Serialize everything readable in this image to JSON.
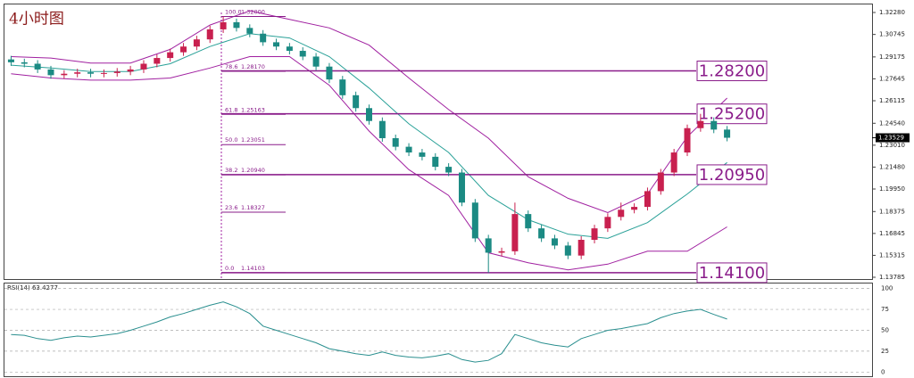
{
  "chart_data": [
    {
      "type": "candlestick",
      "title": "4小时图",
      "ylim": [
        1.1366,
        1.3284
      ],
      "yticks": [
        {
          "value": 1.3228,
          "label": "1.32280"
        },
        {
          "value": 1.30745,
          "label": "1.30745"
        },
        {
          "value": 1.29175,
          "label": "1.29175"
        },
        {
          "value": 1.27645,
          "label": "1.27645"
        },
        {
          "value": 1.26115,
          "label": "1.26115"
        },
        {
          "value": 1.2454,
          "label": "1.24540"
        },
        {
          "value": 1.2301,
          "label": "1.23010"
        },
        {
          "value": 1.2148,
          "label": "1.21480"
        },
        {
          "value": 1.1995,
          "label": "1.19950"
        },
        {
          "value": 1.18375,
          "label": "1.18375"
        },
        {
          "value": 1.16845,
          "label": "1.16845"
        },
        {
          "value": 1.15315,
          "label": "1.15315"
        },
        {
          "value": 1.13785,
          "label": "1.13785"
        }
      ],
      "current_price": 1.23529,
      "up_color": "#c8204f",
      "down_color": "#1b8a83",
      "open": [
        1.29,
        1.288,
        1.287,
        1.283,
        1.279,
        1.28,
        1.281,
        1.28,
        1.2805,
        1.2815,
        1.283,
        1.287,
        1.291,
        1.295,
        1.299,
        1.304,
        1.311,
        1.316,
        1.312,
        1.308,
        1.302,
        1.299,
        1.296,
        1.292,
        1.285,
        1.276,
        1.265,
        1.256,
        1.247,
        1.235,
        1.229,
        1.225,
        1.222,
        1.215,
        1.211,
        1.19,
        1.165,
        1.155,
        1.156,
        1.182,
        1.172,
        1.165,
        1.16,
        1.153,
        1.164,
        1.172,
        1.18,
        1.185,
        1.187,
        1.198,
        1.211,
        1.225,
        1.242,
        1.247,
        1.241
      ],
      "high": [
        1.2925,
        1.2905,
        1.2895,
        1.2855,
        1.2825,
        1.2835,
        1.2835,
        1.283,
        1.284,
        1.2855,
        1.2895,
        1.2935,
        1.2975,
        1.3015,
        1.3065,
        1.3135,
        1.32,
        1.3185,
        1.3145,
        1.3105,
        1.3045,
        1.3015,
        1.2985,
        1.2945,
        1.2875,
        1.2785,
        1.2675,
        1.2585,
        1.2495,
        1.2375,
        1.2315,
        1.2275,
        1.2245,
        1.2175,
        1.2135,
        1.1925,
        1.1675,
        1.1585,
        1.19,
        1.1845,
        1.1745,
        1.1675,
        1.1625,
        1.1665,
        1.1745,
        1.1825,
        1.19,
        1.1895,
        1.2005,
        1.2135,
        1.2275,
        1.2445,
        1.252,
        1.2495,
        1.2435
      ],
      "low": [
        1.2855,
        1.2845,
        1.2805,
        1.2765,
        1.2765,
        1.2775,
        1.2775,
        1.2775,
        1.278,
        1.279,
        1.2805,
        1.2845,
        1.2885,
        1.2925,
        1.2965,
        1.3015,
        1.3085,
        1.3095,
        1.3055,
        1.2995,
        1.2965,
        1.2935,
        1.2895,
        1.2825,
        1.2735,
        1.2625,
        1.2535,
        1.2445,
        1.2325,
        1.2265,
        1.2225,
        1.2195,
        1.2125,
        1.2085,
        1.1875,
        1.1625,
        1.141,
        1.1525,
        1.1535,
        1.1695,
        1.1625,
        1.1575,
        1.1505,
        1.1505,
        1.1615,
        1.1695,
        1.1775,
        1.1825,
        1.1845,
        1.1955,
        1.2085,
        1.2225,
        1.2395,
        1.2385,
        1.2328
      ],
      "close": [
        1.288,
        1.287,
        1.283,
        1.279,
        1.28,
        1.281,
        1.28,
        1.2805,
        1.2815,
        1.283,
        1.287,
        1.291,
        1.295,
        1.299,
        1.304,
        1.311,
        1.316,
        1.312,
        1.308,
        1.302,
        1.299,
        1.296,
        1.292,
        1.285,
        1.276,
        1.265,
        1.256,
        1.247,
        1.235,
        1.229,
        1.225,
        1.222,
        1.215,
        1.211,
        1.19,
        1.165,
        1.155,
        1.156,
        1.182,
        1.172,
        1.165,
        1.16,
        1.153,
        1.164,
        1.172,
        1.18,
        1.185,
        1.187,
        1.198,
        1.211,
        1.225,
        1.242,
        1.247,
        1.241,
        1.23529
      ],
      "bands": {
        "x": [
          0,
          3,
          6,
          9,
          12,
          15,
          18,
          21,
          24,
          27,
          30,
          33,
          36,
          39,
          42,
          45,
          48,
          51,
          54
        ],
        "series": [
          {
            "color": "#a020a0",
            "values": [
              1.292,
              1.291,
              1.2875,
              1.2875,
              1.297,
              1.314,
              1.324,
              1.318,
              1.312,
              1.3,
              1.277,
              1.255,
              1.235,
              1.208,
              1.193,
              1.183,
              1.196,
              1.236,
              1.263
            ]
          },
          {
            "color": "#2aa198",
            "values": [
              1.286,
              1.284,
              1.2815,
              1.2815,
              1.287,
              1.299,
              1.308,
              1.305,
              1.292,
              1.27,
              1.245,
              1.225,
              1.195,
              1.178,
              1.168,
              1.165,
              1.176,
              1.196,
              1.218
            ]
          },
          {
            "color": "#a020a0",
            "values": [
              1.28,
              1.277,
              1.2755,
              1.2755,
              1.277,
              1.284,
              1.292,
              1.292,
              1.272,
              1.24,
              1.213,
              1.195,
              1.155,
              1.148,
              1.143,
              1.147,
              1.156,
              1.156,
              1.173
            ]
          }
        ]
      },
      "fib_levels": [
        {
          "ratio": "100.0",
          "value": 1.32,
          "label": "1.32000"
        },
        {
          "ratio": "78.6",
          "value": 1.2817,
          "label": "1.28170"
        },
        {
          "ratio": "61.8",
          "value": 1.25163,
          "label": "1.25163"
        },
        {
          "ratio": "50.0",
          "value": 1.23051,
          "label": "1.23051"
        },
        {
          "ratio": "38.2",
          "value": 1.2094,
          "label": "1.20940"
        },
        {
          "ratio": "23.6",
          "value": 1.18327,
          "label": "1.18327"
        },
        {
          "ratio": "0.0",
          "value": 1.14103,
          "label": "1.14103"
        }
      ],
      "key_levels": [
        {
          "value": 1.282,
          "label": "1.28200"
        },
        {
          "value": 1.252,
          "label": "1.25200"
        },
        {
          "value": 1.2095,
          "label": "1.20950"
        },
        {
          "value": 1.141,
          "label": "1.14100"
        }
      ],
      "level_color": "#8a1c8a"
    },
    {
      "type": "line",
      "title": "RSI(14) 63.4277",
      "ylim": [
        -5,
        106
      ],
      "yticks": [
        0,
        25,
        50,
        75,
        100
      ],
      "color": "#2a8f8f",
      "values": [
        45,
        44,
        40,
        38,
        41,
        43,
        42,
        44,
        46,
        50,
        55,
        60,
        66,
        70,
        75,
        80,
        84,
        78,
        70,
        55,
        50,
        45,
        40,
        35,
        28,
        25,
        22,
        20,
        24,
        20,
        18,
        17,
        19,
        22,
        15,
        12,
        14,
        22,
        45,
        40,
        35,
        32,
        30,
        40,
        45,
        50,
        52,
        55,
        58,
        65,
        70,
        73,
        75,
        69,
        63.4277
      ]
    }
  ]
}
